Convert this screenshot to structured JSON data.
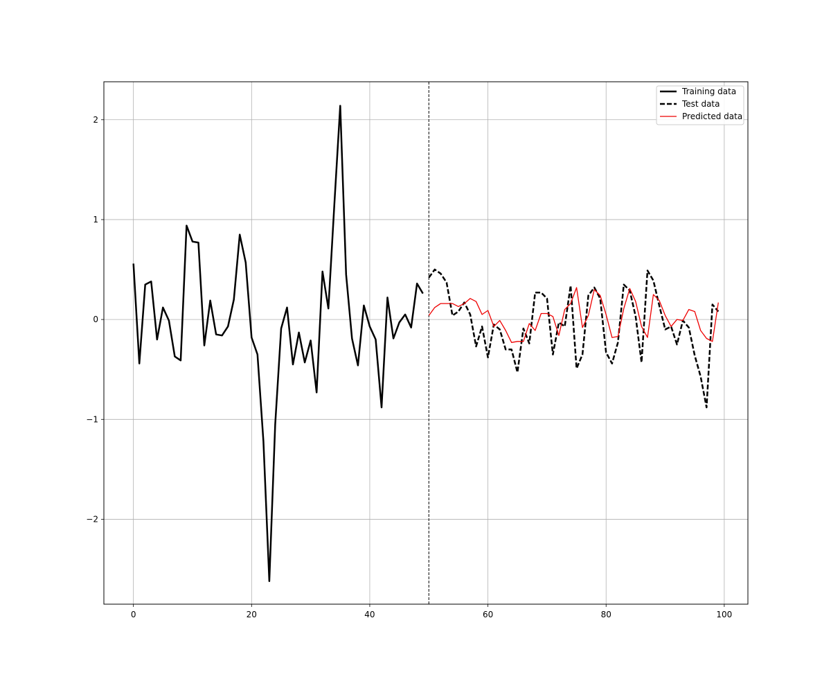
{
  "chart_data": {
    "type": "line",
    "title": "",
    "xlabel": "",
    "ylabel": "",
    "xlim": [
      -5,
      104
    ],
    "ylim": [
      -2.85,
      2.38
    ],
    "xticks": [
      0,
      20,
      40,
      60,
      80,
      100
    ],
    "yticks": [
      -2,
      -1,
      0,
      1,
      2
    ],
    "xtick_labels": [
      "0",
      "20",
      "40",
      "60",
      "80",
      "100"
    ],
    "ytick_labels": [
      "−2",
      "−1",
      "0",
      "1",
      "2"
    ],
    "grid": true,
    "legend_position": "top-right",
    "split_line_x": 50,
    "series": [
      {
        "name": "Training data",
        "style": "solid",
        "color": "#000000",
        "x": [
          0,
          1,
          2,
          3,
          4,
          5,
          6,
          7,
          8,
          9,
          10,
          11,
          12,
          13,
          14,
          15,
          16,
          17,
          18,
          19,
          20,
          21,
          22,
          23,
          24,
          25,
          26,
          27,
          28,
          29,
          30,
          31,
          32,
          33,
          34,
          35,
          36,
          37,
          38,
          39,
          40,
          41,
          42,
          43,
          44,
          45,
          46,
          47,
          48,
          49
        ],
        "values": [
          0.56,
          -0.44,
          0.35,
          0.38,
          -0.2,
          0.12,
          -0.01,
          -0.37,
          -0.41,
          0.94,
          0.78,
          0.77,
          -0.26,
          0.19,
          -0.15,
          -0.16,
          -0.07,
          0.2,
          0.85,
          0.57,
          -0.18,
          -0.35,
          -1.22,
          -2.62,
          -1.05,
          -0.09,
          0.12,
          -0.45,
          -0.13,
          -0.43,
          -0.21,
          -0.73,
          0.48,
          0.11,
          1.15,
          2.14,
          0.45,
          -0.19,
          -0.46,
          0.14,
          -0.07,
          -0.2,
          -0.88,
          0.22,
          -0.19,
          -0.03,
          0.05,
          -0.08,
          0.36,
          0.26
        ]
      },
      {
        "name": "Test data",
        "style": "dashed",
        "color": "#000000",
        "x": [
          50,
          51,
          52,
          53,
          54,
          55,
          56,
          57,
          58,
          59,
          60,
          61,
          62,
          63,
          64,
          65,
          66,
          67,
          68,
          69,
          70,
          71,
          72,
          73,
          74,
          75,
          76,
          77,
          78,
          79,
          80,
          81,
          82,
          83,
          84,
          85,
          86,
          87,
          88,
          89,
          90,
          91,
          92,
          93,
          94,
          95,
          96,
          97,
          98,
          99
        ],
        "values": [
          0.42,
          0.5,
          0.46,
          0.37,
          0.04,
          0.08,
          0.17,
          0.05,
          -0.27,
          -0.07,
          -0.38,
          -0.05,
          -0.1,
          -0.3,
          -0.3,
          -0.53,
          -0.09,
          -0.24,
          0.27,
          0.27,
          0.21,
          -0.35,
          -0.03,
          -0.07,
          0.34,
          -0.49,
          -0.35,
          0.24,
          0.32,
          0.21,
          -0.33,
          -0.44,
          -0.23,
          0.35,
          0.29,
          0.03,
          -0.43,
          0.49,
          0.39,
          0.14,
          -0.1,
          -0.07,
          -0.25,
          -0.01,
          -0.08,
          -0.36,
          -0.57,
          -0.88,
          0.15,
          0.08
        ]
      },
      {
        "name": "Predicted data",
        "style": "solid",
        "color": "#ee0000",
        "x": [
          50,
          51,
          52,
          53,
          54,
          55,
          56,
          57,
          58,
          59,
          60,
          61,
          62,
          63,
          64,
          65,
          66,
          67,
          68,
          69,
          70,
          71,
          72,
          73,
          74,
          75,
          76,
          77,
          78,
          79,
          80,
          81,
          82,
          83,
          84,
          85,
          86,
          87,
          88,
          89,
          90,
          91,
          92,
          93,
          94,
          95,
          96,
          97,
          98,
          99
        ],
        "values": [
          0.04,
          0.12,
          0.16,
          0.16,
          0.16,
          0.13,
          0.16,
          0.21,
          0.18,
          0.05,
          0.09,
          -0.07,
          -0.01,
          -0.11,
          -0.23,
          -0.22,
          -0.22,
          -0.04,
          -0.11,
          0.06,
          0.06,
          0.03,
          -0.16,
          0.1,
          0.16,
          0.32,
          -0.08,
          0.04,
          0.3,
          0.24,
          0.05,
          -0.18,
          -0.17,
          0.11,
          0.31,
          0.18,
          -0.07,
          -0.18,
          0.25,
          0.19,
          0.04,
          -0.07,
          0.0,
          -0.01,
          0.1,
          0.08,
          -0.11,
          -0.19,
          -0.22,
          0.17
        ]
      }
    ]
  }
}
